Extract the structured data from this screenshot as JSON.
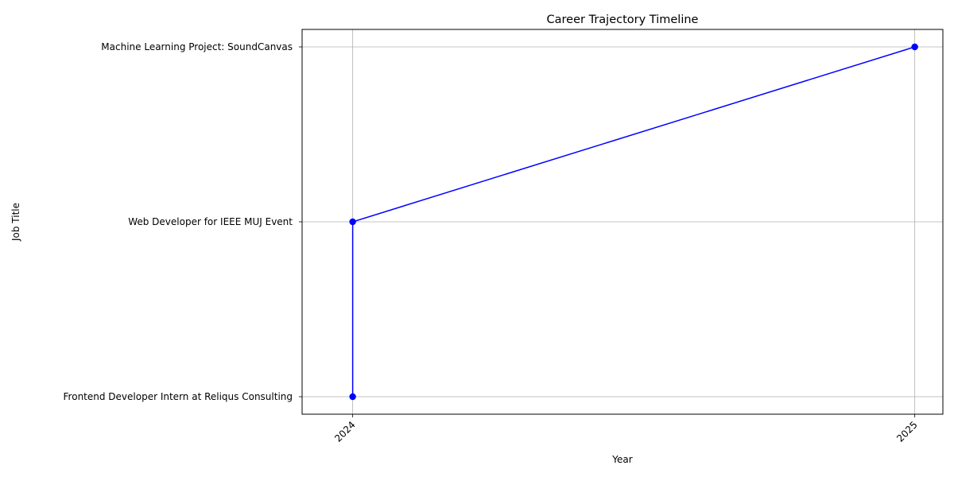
{
  "chart_data": {
    "type": "line",
    "title": "Career Trajectory Timeline",
    "xlabel": "Year",
    "ylabel": "Job Title",
    "x_ticks": [
      "2024",
      "2025"
    ],
    "y_categories": [
      "Frontend Developer Intern at Reliqus Consulting",
      "Web Developer for IEEE MUJ Event",
      "Machine Learning Project: SoundCanvas"
    ],
    "series": [
      {
        "points": [
          {
            "x": 2024,
            "y": "Frontend Developer Intern at Reliqus Consulting"
          },
          {
            "x": 2024,
            "y": "Web Developer for IEEE MUJ Event"
          },
          {
            "x": 2025,
            "y": "Machine Learning Project: SoundCanvas"
          }
        ],
        "color": "#0000ff",
        "marker": "circle"
      }
    ],
    "xlim": [
      2023.91,
      2025.05
    ],
    "grid": true,
    "x_tick_rotation_deg": 45
  }
}
